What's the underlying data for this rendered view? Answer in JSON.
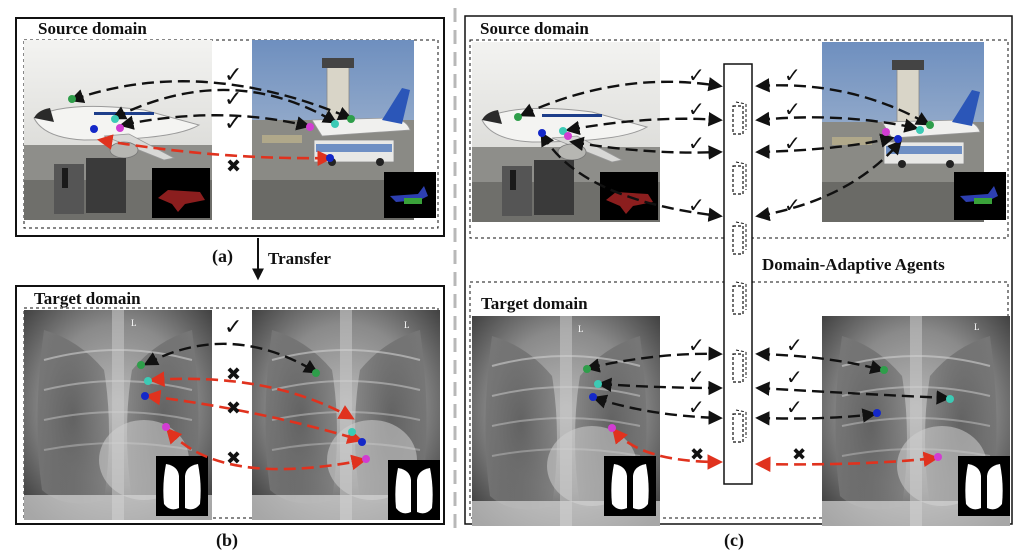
{
  "labels": {
    "source_domain": "Source domain",
    "target_domain": "Target domain",
    "panel_a": "(a)",
    "panel_b": "(b)",
    "panel_c": "(c)",
    "transfer": "Transfer",
    "agents": "Domain-Adaptive Agents",
    "xray_marker": "L"
  },
  "marks": {
    "check": "✓",
    "cross": "✖"
  },
  "colors": {
    "keypoint_green": "#2e9e4a",
    "keypoint_cyan": "#3ccab5",
    "keypoint_blue": "#1428c8",
    "keypoint_magenta": "#d23cd2",
    "match_black": "#111111",
    "match_red": "#e0321e"
  }
}
